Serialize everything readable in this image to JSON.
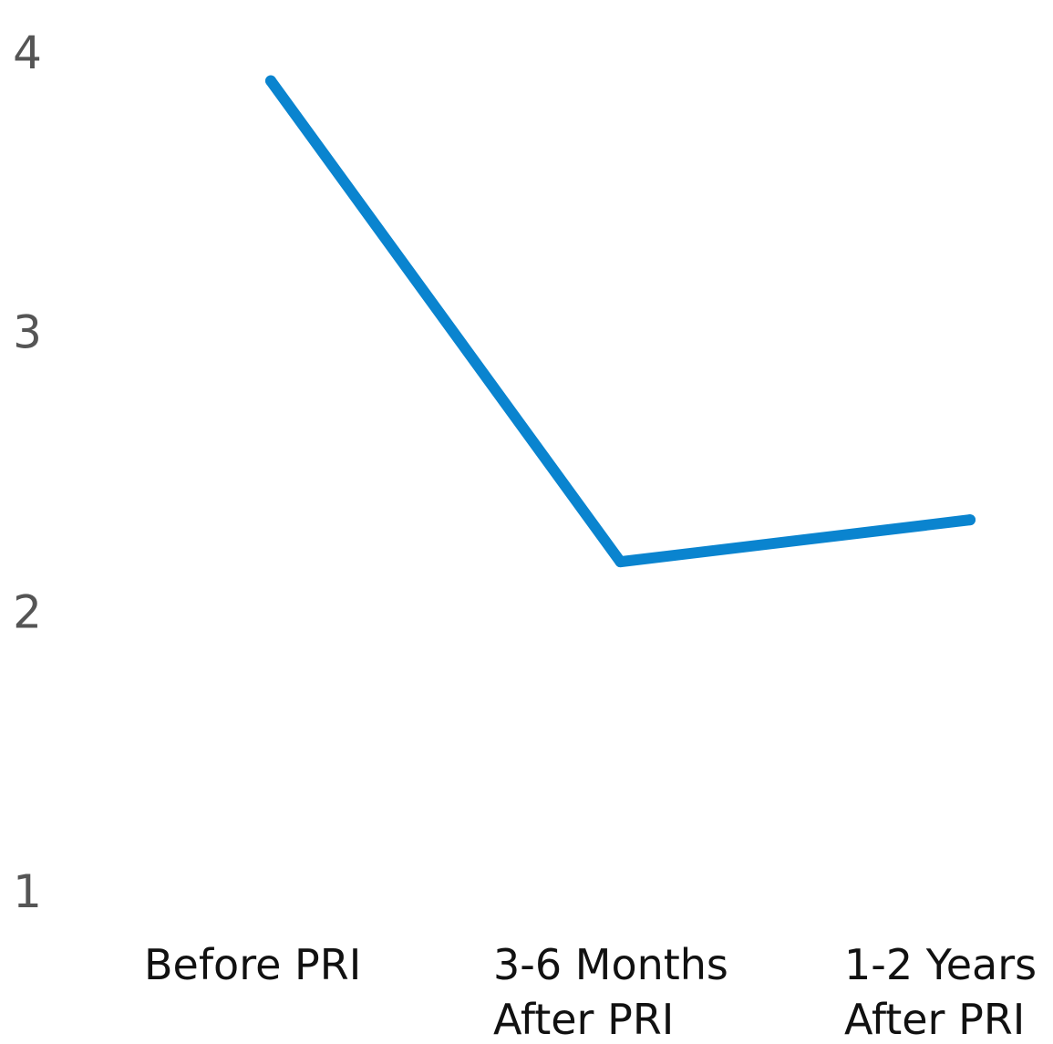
{
  "chart_data": {
    "type": "line",
    "title": "",
    "xlabel": "",
    "ylabel": "",
    "categories": [
      [
        "Before PRI"
      ],
      [
        "3-6 Months",
        "After PRI"
      ],
      [
        "1-2 Years",
        "After PRI"
      ]
    ],
    "series": [
      {
        "values": [
          3.9,
          2.18,
          2.33
        ],
        "color": "#0A84CF"
      }
    ],
    "ylim": [
      1,
      4
    ],
    "yticks": [
      "1",
      "2",
      "3",
      "4"
    ],
    "grid": false,
    "legend": "none"
  }
}
